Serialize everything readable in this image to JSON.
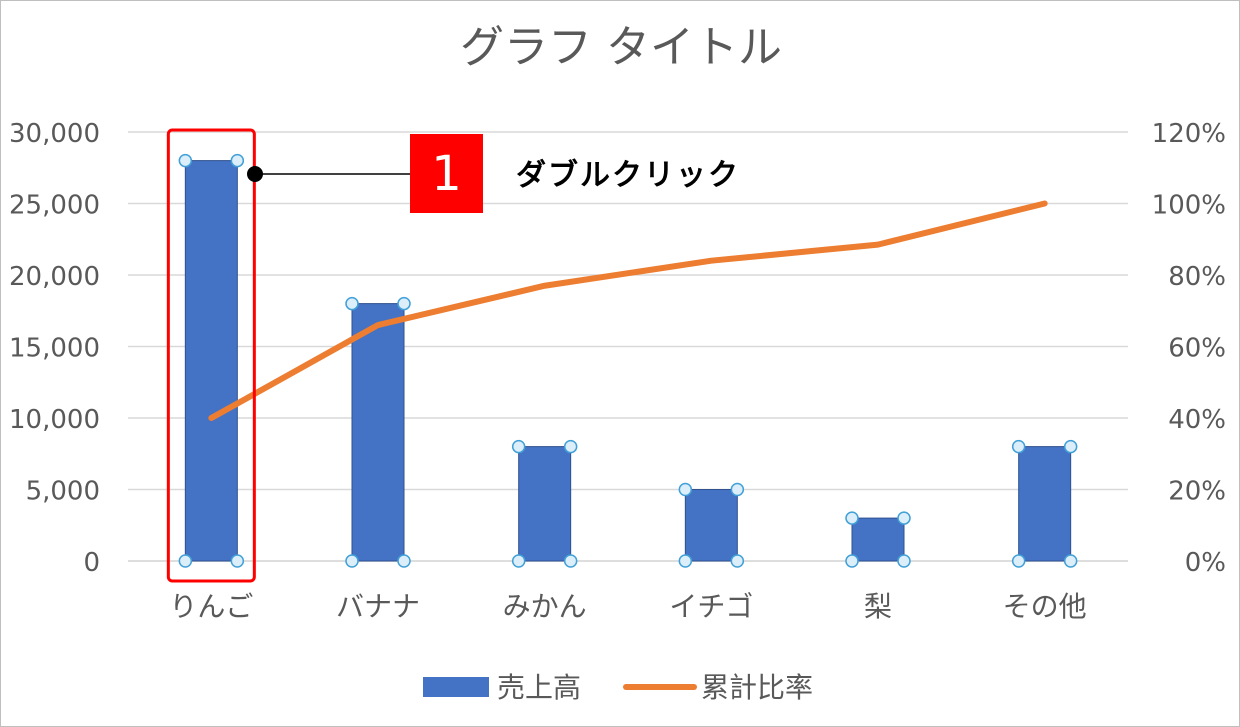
{
  "chart_data": {
    "type": "bar",
    "title": "グラフ タイトル",
    "categories": [
      "りんご",
      "バナナ",
      "みかん",
      "イチゴ",
      "梨",
      "その他"
    ],
    "series": [
      {
        "name": "売上高",
        "kind": "bar",
        "axis": "left",
        "color": "#4472c4",
        "values": [
          28000,
          18000,
          8000,
          5000,
          3000,
          8000
        ]
      },
      {
        "name": "累計比率",
        "kind": "line",
        "axis": "right",
        "color": "#ed7d31",
        "values": [
          0.4,
          0.66,
          0.77,
          0.84,
          0.885,
          1.0
        ]
      }
    ],
    "y_left": {
      "min": 0,
      "max": 30000,
      "ticks": [
        "0",
        "5,000",
        "10,000",
        "15,000",
        "20,000",
        "25,000",
        "30,000"
      ]
    },
    "y_right": {
      "min": 0,
      "max": 1.2,
      "ticks": [
        "0%",
        "20%",
        "40%",
        "60%",
        "80%",
        "100%",
        "120%"
      ]
    },
    "grid": true,
    "legend": "bottom",
    "selected_series": "売上高",
    "highlighted_category": "りんご"
  },
  "callout": {
    "number": "1",
    "text": "ダブルクリック",
    "badge_color": "#ff0000"
  }
}
